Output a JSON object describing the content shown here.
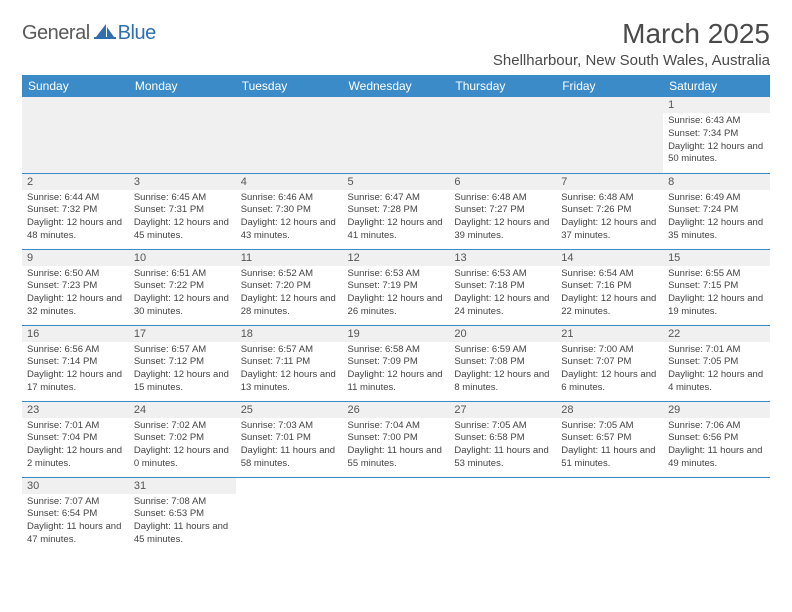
{
  "logo": {
    "text1": "General",
    "text2": "Blue"
  },
  "title": "March 2025",
  "location": "Shellharbour, New South Wales, Australia",
  "colors": {
    "header_bg": "#3b8bc9",
    "header_fg": "#ffffff",
    "daynum_bg": "#f0f0f0",
    "text": "#4a4a4a",
    "rule": "#3b8bc9"
  },
  "weekdays": [
    "Sunday",
    "Monday",
    "Tuesday",
    "Wednesday",
    "Thursday",
    "Friday",
    "Saturday"
  ],
  "days": {
    "1": {
      "sunrise": "6:43 AM",
      "sunset": "7:34 PM",
      "daylight": "12 hours and 50 minutes."
    },
    "2": {
      "sunrise": "6:44 AM",
      "sunset": "7:32 PM",
      "daylight": "12 hours and 48 minutes."
    },
    "3": {
      "sunrise": "6:45 AM",
      "sunset": "7:31 PM",
      "daylight": "12 hours and 45 minutes."
    },
    "4": {
      "sunrise": "6:46 AM",
      "sunset": "7:30 PM",
      "daylight": "12 hours and 43 minutes."
    },
    "5": {
      "sunrise": "6:47 AM",
      "sunset": "7:28 PM",
      "daylight": "12 hours and 41 minutes."
    },
    "6": {
      "sunrise": "6:48 AM",
      "sunset": "7:27 PM",
      "daylight": "12 hours and 39 minutes."
    },
    "7": {
      "sunrise": "6:48 AM",
      "sunset": "7:26 PM",
      "daylight": "12 hours and 37 minutes."
    },
    "8": {
      "sunrise": "6:49 AM",
      "sunset": "7:24 PM",
      "daylight": "12 hours and 35 minutes."
    },
    "9": {
      "sunrise": "6:50 AM",
      "sunset": "7:23 PM",
      "daylight": "12 hours and 32 minutes."
    },
    "10": {
      "sunrise": "6:51 AM",
      "sunset": "7:22 PM",
      "daylight": "12 hours and 30 minutes."
    },
    "11": {
      "sunrise": "6:52 AM",
      "sunset": "7:20 PM",
      "daylight": "12 hours and 28 minutes."
    },
    "12": {
      "sunrise": "6:53 AM",
      "sunset": "7:19 PM",
      "daylight": "12 hours and 26 minutes."
    },
    "13": {
      "sunrise": "6:53 AM",
      "sunset": "7:18 PM",
      "daylight": "12 hours and 24 minutes."
    },
    "14": {
      "sunrise": "6:54 AM",
      "sunset": "7:16 PM",
      "daylight": "12 hours and 22 minutes."
    },
    "15": {
      "sunrise": "6:55 AM",
      "sunset": "7:15 PM",
      "daylight": "12 hours and 19 minutes."
    },
    "16": {
      "sunrise": "6:56 AM",
      "sunset": "7:14 PM",
      "daylight": "12 hours and 17 minutes."
    },
    "17": {
      "sunrise": "6:57 AM",
      "sunset": "7:12 PM",
      "daylight": "12 hours and 15 minutes."
    },
    "18": {
      "sunrise": "6:57 AM",
      "sunset": "7:11 PM",
      "daylight": "12 hours and 13 minutes."
    },
    "19": {
      "sunrise": "6:58 AM",
      "sunset": "7:09 PM",
      "daylight": "12 hours and 11 minutes."
    },
    "20": {
      "sunrise": "6:59 AM",
      "sunset": "7:08 PM",
      "daylight": "12 hours and 8 minutes."
    },
    "21": {
      "sunrise": "7:00 AM",
      "sunset": "7:07 PM",
      "daylight": "12 hours and 6 minutes."
    },
    "22": {
      "sunrise": "7:01 AM",
      "sunset": "7:05 PM",
      "daylight": "12 hours and 4 minutes."
    },
    "23": {
      "sunrise": "7:01 AM",
      "sunset": "7:04 PM",
      "daylight": "12 hours and 2 minutes."
    },
    "24": {
      "sunrise": "7:02 AM",
      "sunset": "7:02 PM",
      "daylight": "12 hours and 0 minutes."
    },
    "25": {
      "sunrise": "7:03 AM",
      "sunset": "7:01 PM",
      "daylight": "11 hours and 58 minutes."
    },
    "26": {
      "sunrise": "7:04 AM",
      "sunset": "7:00 PM",
      "daylight": "11 hours and 55 minutes."
    },
    "27": {
      "sunrise": "7:05 AM",
      "sunset": "6:58 PM",
      "daylight": "11 hours and 53 minutes."
    },
    "28": {
      "sunrise": "7:05 AM",
      "sunset": "6:57 PM",
      "daylight": "11 hours and 51 minutes."
    },
    "29": {
      "sunrise": "7:06 AM",
      "sunset": "6:56 PM",
      "daylight": "11 hours and 49 minutes."
    },
    "30": {
      "sunrise": "7:07 AM",
      "sunset": "6:54 PM",
      "daylight": "11 hours and 47 minutes."
    },
    "31": {
      "sunrise": "7:08 AM",
      "sunset": "6:53 PM",
      "daylight": "11 hours and 45 minutes."
    }
  },
  "labels": {
    "sunrise": "Sunrise: ",
    "sunset": "Sunset: ",
    "daylight": "Daylight: "
  },
  "grid": [
    [
      null,
      null,
      null,
      null,
      null,
      null,
      "1"
    ],
    [
      "2",
      "3",
      "4",
      "5",
      "6",
      "7",
      "8"
    ],
    [
      "9",
      "10",
      "11",
      "12",
      "13",
      "14",
      "15"
    ],
    [
      "16",
      "17",
      "18",
      "19",
      "20",
      "21",
      "22"
    ],
    [
      "23",
      "24",
      "25",
      "26",
      "27",
      "28",
      "29"
    ],
    [
      "30",
      "31",
      null,
      null,
      null,
      null,
      null
    ]
  ]
}
